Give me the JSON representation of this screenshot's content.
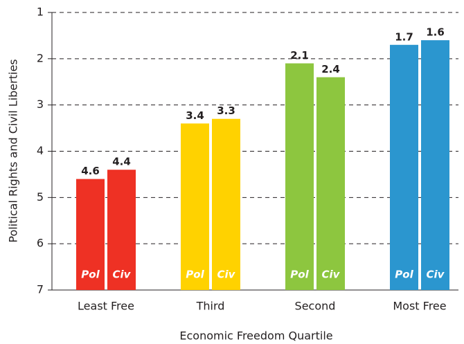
{
  "chart_data": {
    "type": "bar",
    "xlabel": "Economic Freedom Quartile",
    "ylabel": "Political Rights and Civil Liberties",
    "categories": [
      "Least Free",
      "Third",
      "Second",
      "Most Free"
    ],
    "category_colors": [
      "#ee3124",
      "#ffd200",
      "#8dc63f",
      "#2b96cf"
    ],
    "series": [
      {
        "name": "Pol",
        "values": [
          4.6,
          3.4,
          2.1,
          1.7
        ]
      },
      {
        "name": "Civ",
        "values": [
          4.4,
          3.3,
          2.4,
          1.6
        ]
      }
    ],
    "ylim": [
      1,
      7
    ],
    "y_inverted": true,
    "yticks": [
      1,
      2,
      3,
      4,
      5,
      6,
      7
    ],
    "grid": true
  }
}
